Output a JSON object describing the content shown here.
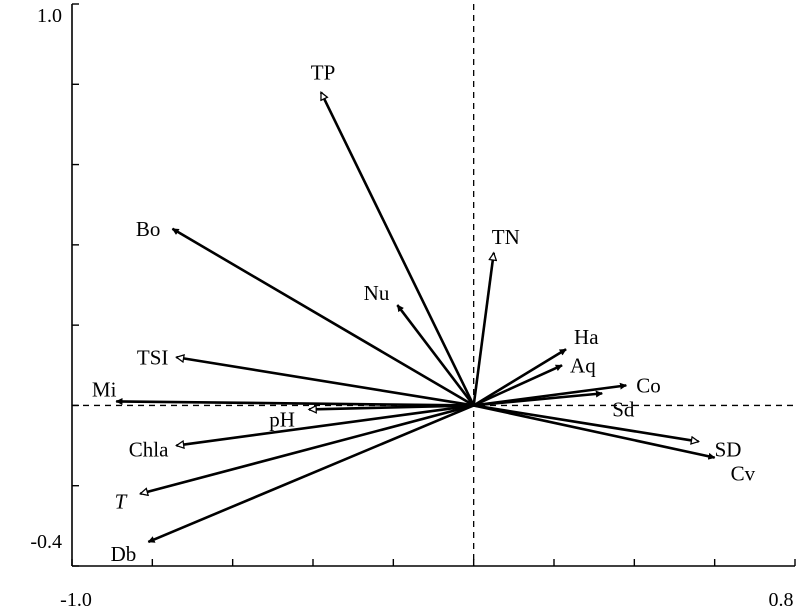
{
  "chart_data": {
    "type": "biplot",
    "xlim": [
      -1.0,
      0.8
    ],
    "ylim": [
      -0.4,
      1.0
    ],
    "x_tick_labels": [
      "-1.0",
      "0.8"
    ],
    "y_tick_labels": [
      "1.0",
      "-0.4"
    ],
    "zero_lines": "dashed",
    "environmental_arrows": [
      {
        "name": "TP",
        "x": -0.38,
        "y": 0.78
      },
      {
        "name": "TN",
        "x": 0.05,
        "y": 0.38
      },
      {
        "name": "TSI",
        "x": -0.74,
        "y": 0.12
      },
      {
        "name": "pH",
        "x": -0.41,
        "y": -0.01
      },
      {
        "name": "Chla",
        "x": -0.74,
        "y": -0.1
      },
      {
        "name": "T",
        "x": -0.83,
        "y": -0.22
      },
      {
        "name": "SD",
        "x": 0.56,
        "y": -0.09
      }
    ],
    "species_arrows": [
      {
        "name": "Bo",
        "x": -0.75,
        "y": 0.44
      },
      {
        "name": "Nu",
        "x": -0.19,
        "y": 0.25
      },
      {
        "name": "Mi",
        "x": -0.89,
        "y": 0.01
      },
      {
        "name": "Db",
        "x": -0.81,
        "y": -0.34
      },
      {
        "name": "Ha",
        "x": 0.23,
        "y": 0.14
      },
      {
        "name": "Aq",
        "x": 0.22,
        "y": 0.1
      },
      {
        "name": "Co",
        "x": 0.38,
        "y": 0.05
      },
      {
        "name": "Sd",
        "x": 0.32,
        "y": 0.03
      },
      {
        "name": "Cv",
        "x": 0.6,
        "y": -0.13
      }
    ]
  }
}
